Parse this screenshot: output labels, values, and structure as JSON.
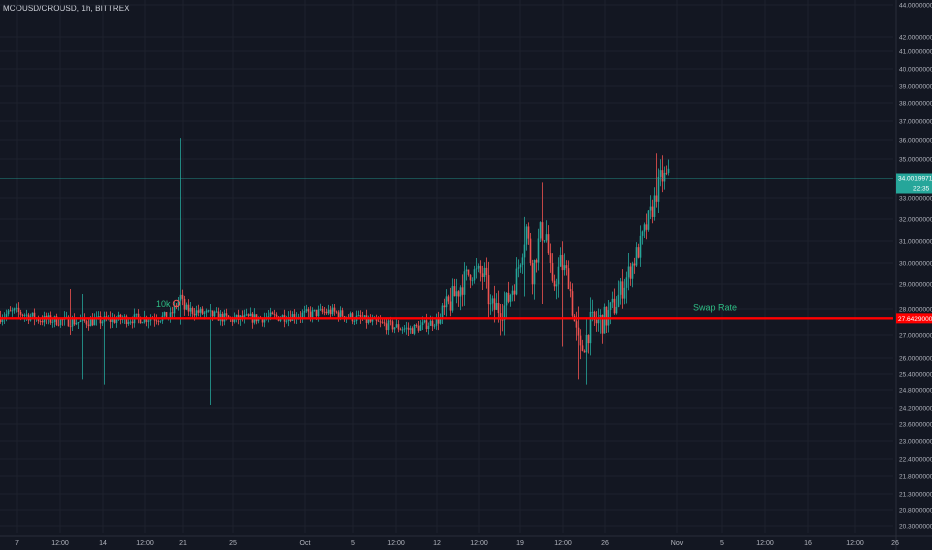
{
  "legend": {
    "text": "MCOUSD/CROUSD, 1h, BITTREX"
  },
  "colors": {
    "background": "#131722",
    "grid": "#1e222d",
    "up": "#26a69a",
    "down": "#ef5350",
    "swap_line": "#ff0000",
    "axis_text": "#b2b5be",
    "swap_label": "#2ebd85"
  },
  "chart_data": {
    "type": "candlestick",
    "title": "MCOUSD/CROUSD, 1h, BITTREX",
    "grid": true,
    "y_axis_position": "right",
    "ylim": [
      20.0,
      44.0
    ],
    "y_ticks": [
      44.0,
      42.0,
      41.0,
      40.0,
      39.0,
      38.0,
      37.0,
      36.0,
      35.0,
      33.0,
      32.0,
      31.0,
      30.0,
      29.0,
      28.0,
      27.0,
      26.0,
      25.4,
      24.8,
      24.2,
      23.6,
      23.0,
      22.4,
      21.8,
      21.3,
      20.8,
      20.3
    ],
    "y_tick_labels": [
      "44.00000000",
      "42.00000000",
      "41.00000000",
      "40.00000000",
      "39.00000000",
      "38.00000000",
      "37.00000000",
      "36.00000000",
      "35.00000000",
      "33.00000000",
      "32.00000000",
      "31.00000000",
      "30.00000000",
      "29.00000000",
      "28.00000000",
      "27.00000000",
      "26.00000000",
      "25.40000000",
      "24.80000000",
      "24.20000000",
      "23.60000000",
      "23.00000000",
      "22.40000000",
      "21.80000000",
      "21.30000000",
      "20.80000000",
      "20.30000000"
    ],
    "x_tick_labels": [
      "7",
      "12:00",
      "14",
      "12:00",
      "21",
      "25",
      "Oct",
      "5",
      "12:00",
      "12",
      "12:00",
      "19",
      "12:00",
      "26",
      "Nov",
      "5",
      "12:00",
      "16",
      "12:00",
      "26"
    ],
    "key_points": [
      {
        "t": "start",
        "price": 27.7
      },
      {
        "t": "mid Sep spike high",
        "price": 36.1
      },
      {
        "t": "mid Sep spike low",
        "price": 24.3
      },
      {
        "t": "mid Oct high",
        "price": 33.8
      },
      {
        "t": "late Oct low",
        "price": 25.1
      },
      {
        "t": "last",
        "price": 34.0
      }
    ],
    "last_price": {
      "value": 34.0,
      "label": "34.00199714",
      "countdown": "22:35"
    },
    "swap_rate": {
      "value": 27.64,
      "label": "27.64290000",
      "text": "Swap Rate"
    },
    "marker": {
      "text": "10k"
    }
  }
}
